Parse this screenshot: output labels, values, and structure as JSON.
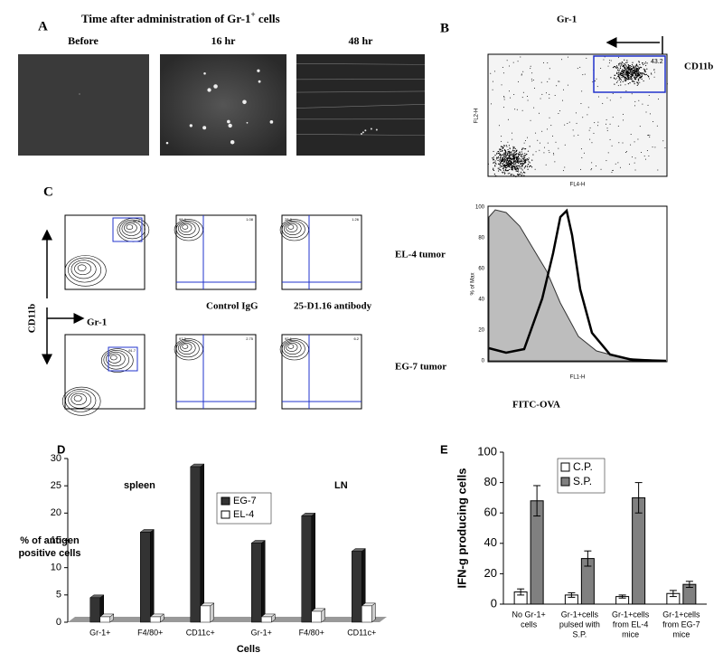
{
  "figure": {
    "panel_a": {
      "label": "A",
      "title": "Time after administration of Gr-1",
      "title_sup": "+",
      "title_tail": " cells",
      "columns": [
        "Before",
        "16 hr",
        "48 hr"
      ]
    },
    "panel_b": {
      "label": "B",
      "marker_top": "Gr-1",
      "marker_side": "CD11b",
      "gate_value": "43.2",
      "dot_ylabel": "FL2-H",
      "dot_xlabel": "FL4-H",
      "hist_ylabel": "% of Max",
      "hist_xlabel": "FL1-H",
      "hist_yticks": [
        "0",
        "20",
        "40",
        "60",
        "80",
        "100"
      ],
      "xlabel": "FITC-OVA"
    },
    "panel_c": {
      "label": "C",
      "axis_y": "CD11b",
      "axis_x": "Gr-1",
      "rows": [
        "EL-4 tumor",
        "EG-7 tumor"
      ],
      "cols": [
        "Control IgG",
        "25-D1.16 antibody"
      ],
      "gates": [
        [
          "96.6",
          "98.4",
          "1.08",
          "28.8",
          "1.26"
        ],
        [
          "91.7",
          "97.3",
          "2.75",
          "92.6",
          "6.2"
        ]
      ]
    },
    "panel_d": {
      "label": "D"
    },
    "panel_e": {
      "label": "E"
    }
  },
  "chart_data": [
    {
      "type": "bar3d",
      "groups": [
        "spleen",
        "LN"
      ],
      "categories": [
        "Gr-1+",
        "F4/80+",
        "CD11c+",
        "Gr-1+",
        "F4/80+",
        "CD11c+"
      ],
      "series": [
        {
          "name": "EG-7",
          "color": "#333333",
          "values": [
            4.5,
            16.5,
            28.5,
            14.5,
            19.5,
            13
          ]
        },
        {
          "name": "EL-4",
          "color": "#ffffff",
          "values": [
            1,
            1,
            3,
            1,
            2,
            3
          ]
        }
      ],
      "ylabel_lines": [
        "% of antigen",
        "positive cells"
      ],
      "xlabel": "Cells",
      "ylim": [
        0,
        30
      ],
      "yticks": [
        0,
        5,
        10,
        15,
        20,
        25,
        30
      ]
    },
    {
      "type": "bar",
      "categories": [
        [
          "No Gr-1+",
          "cells"
        ],
        [
          "Gr-1+cells",
          "pulsed with",
          "S.P."
        ],
        [
          "Gr-1+cells",
          "from EL-4",
          "mice"
        ],
        [
          "Gr-1+cells",
          "from EG-7",
          "mice"
        ]
      ],
      "series": [
        {
          "name": "C.P.",
          "color": "#ffffff",
          "values": [
            8,
            6,
            5,
            7
          ],
          "errors": [
            2,
            1.5,
            1,
            2
          ]
        },
        {
          "name": "S.P.",
          "color": "#808080",
          "values": [
            68,
            30,
            70,
            13
          ],
          "errors": [
            10,
            5,
            10,
            2
          ]
        }
      ],
      "ylabel": "IFN-g producing cells",
      "ylim": [
        0,
        100
      ],
      "yticks": [
        0,
        20,
        40,
        60,
        80,
        100
      ]
    }
  ]
}
